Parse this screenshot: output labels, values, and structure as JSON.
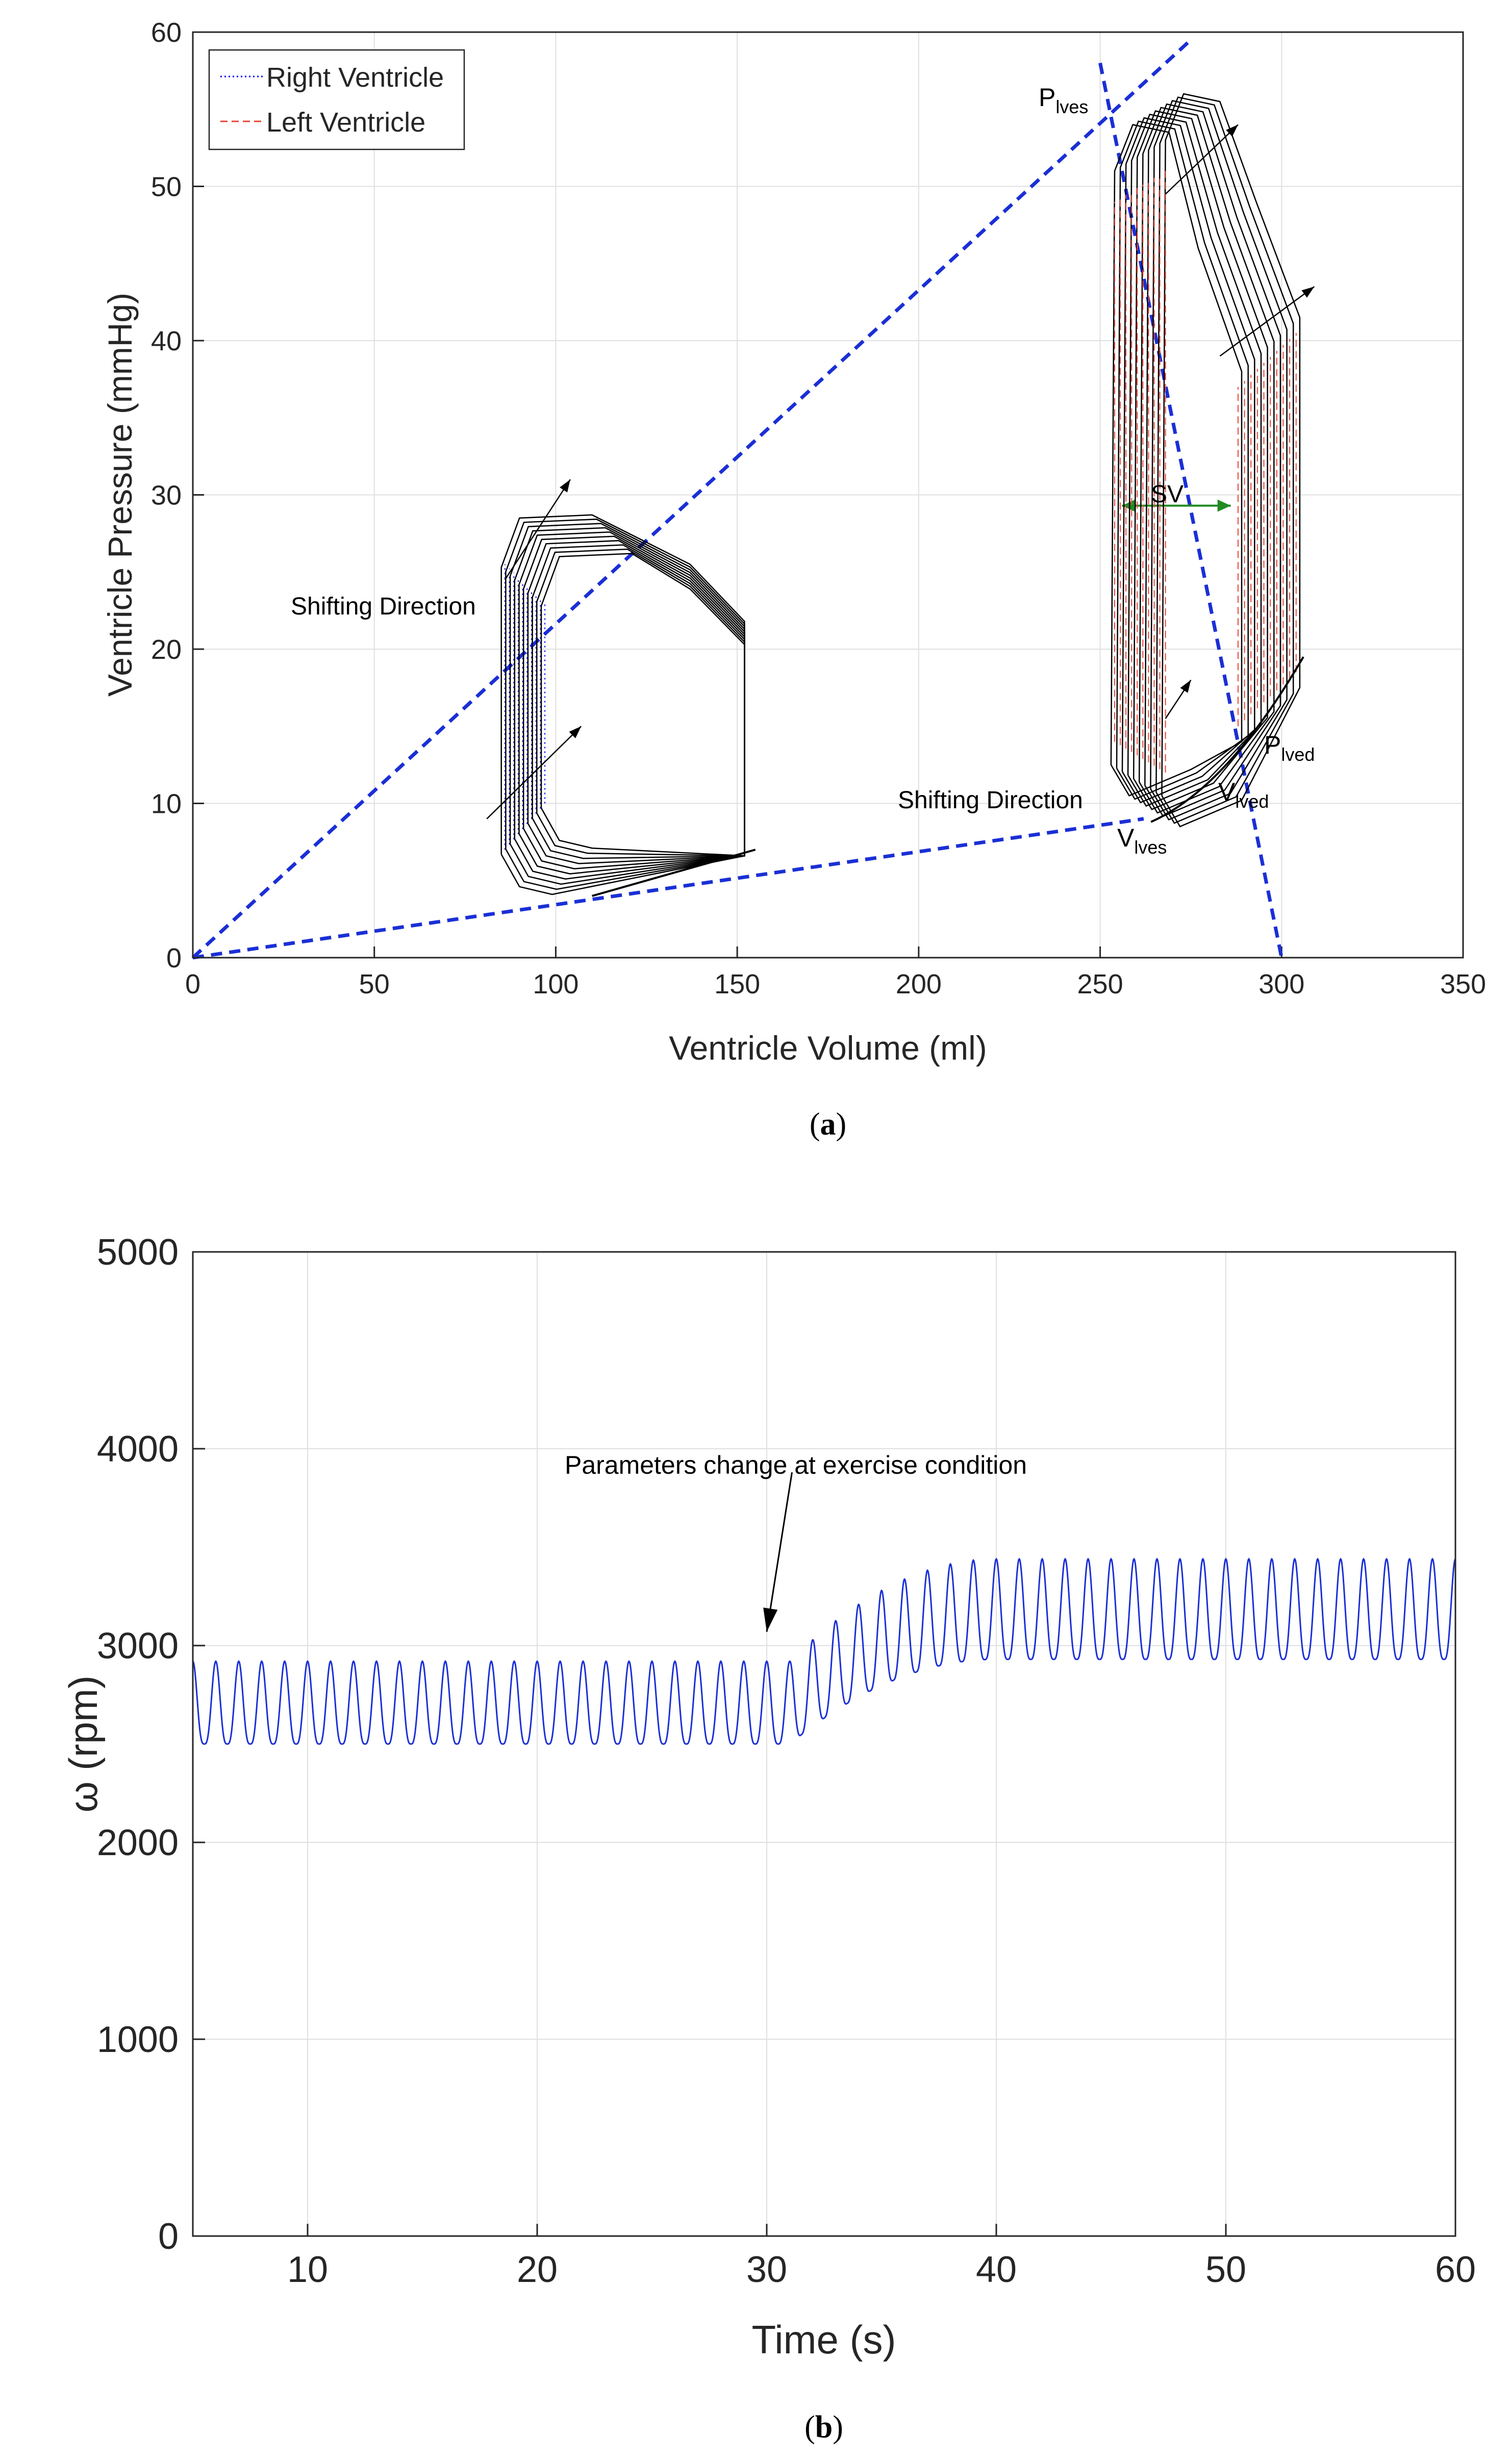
{
  "colors": {
    "rv": "#0000ff",
    "lv": "#e8473a",
    "loop": "#000000",
    "guide": "#1a2fd6",
    "sv": "#228b22",
    "grid": "#e0e0e0",
    "axis": "#262626"
  },
  "chart_data": [
    {
      "panel": "a",
      "caption_letter": "a",
      "type": "line",
      "title": "",
      "xlabel": "Ventricle Volume (ml)",
      "ylabel": "Ventricle Pressure (mmHg)",
      "xlim": [
        0,
        350
      ],
      "ylim": [
        0,
        60
      ],
      "xticks": [
        "0",
        "50",
        "100",
        "150",
        "200",
        "250",
        "300",
        "350"
      ],
      "yticks": [
        "0",
        "10",
        "20",
        "30",
        "40",
        "50",
        "60"
      ],
      "legend": {
        "placement": "top-left",
        "entries": [
          "Right Ventricle",
          "Left Ventricle"
        ]
      },
      "rv_loops": {
        "count": 10,
        "v_es_range": [
          85,
          96
        ],
        "v_ed": 152,
        "p_es_start": 28,
        "p_min": 4,
        "shift_dp": 0.4
      },
      "lv_loops": {
        "count": 10,
        "v_es_range": [
          253,
          267
        ],
        "v_ed_range": [
          289,
          305
        ],
        "p_max_range": [
          54,
          56
        ],
        "p_min_range": [
          9,
          11
        ]
      },
      "lines": [
        {
          "name": "ESPVR-left",
          "points": [
            [
              0,
              0
            ],
            [
              275,
              59.5
            ]
          ]
        },
        {
          "name": "EDPVR-right",
          "points": [
            [
              0,
              0
            ],
            [
              262,
              9
            ]
          ]
        },
        {
          "name": "SV-axis",
          "points": [
            [
              250,
              58
            ],
            [
              300,
              0
            ]
          ]
        }
      ],
      "annotations": {
        "shifting_rv": "Shifting Direction",
        "shifting_lv": "Shifting Direction",
        "sv": "SV",
        "p_lves_main": "P",
        "p_lves_sub": "lves",
        "p_lved_main": "P",
        "p_lved_sub": "lved",
        "v_lves_main": "V",
        "v_lves_sub": "lves",
        "v_lved_main": "V",
        "v_lved_sub": "lved"
      }
    },
    {
      "panel": "b",
      "caption_letter": "b",
      "type": "line",
      "title": "",
      "xlabel": "Time (s)",
      "ylabel": "ω (rpm)",
      "xlim": [
        5,
        60
      ],
      "ylim": [
        0,
        5000
      ],
      "xticks": [
        "10",
        "20",
        "30",
        "40",
        "50",
        "60"
      ],
      "yticks": [
        "0",
        "1000",
        "2000",
        "3000",
        "4000",
        "5000"
      ],
      "series": [
        {
          "name": "pump speed",
          "period_s": 1.0,
          "before": {
            "min": 2500,
            "max": 2920
          },
          "after": {
            "min": 2930,
            "max": 3440
          },
          "transition_start_s": 31,
          "transition_end_s": 40
        }
      ],
      "annotation": "Parameters change at exercise condition",
      "annotation_time_s": 30
    }
  ]
}
